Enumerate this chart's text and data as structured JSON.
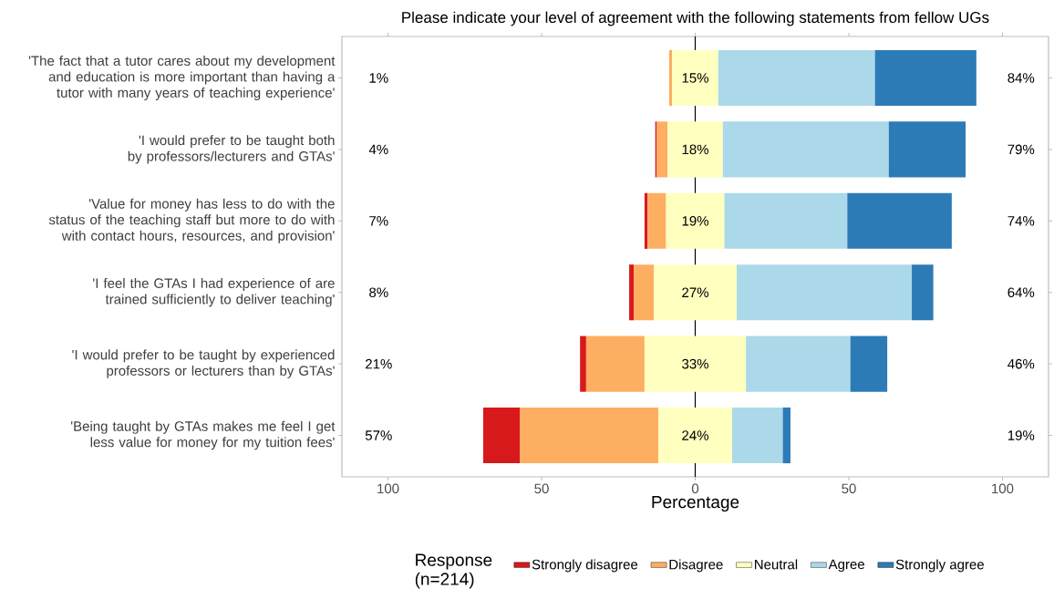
{
  "chart_data": {
    "type": "bar",
    "orientation": "horizontal",
    "title": "Please indicate your level of agreement with the following statements from fellow UGs",
    "xlabel": "Percentage",
    "legend_title": "Response (n=214)",
    "legend": "bottom",
    "categories": [
      "'The fact that a tutor cares about my development and education is more important than having a tutor with many years of teaching experience'",
      "'I would prefer to be taught both by professors/lecturers and GTAs'",
      "'Value for money has less to do with the status of the teaching staff but more to do with with contact hours, resources, and provision'",
      "'I feel the GTAs I had experience of are trained sufficiently to deliver teaching'",
      "'I would prefer to be taught by experienced professors or lecturers than by GTAs'",
      "'Being taught by GTAs makes me feel I get less value for money for my tuition fees'"
    ],
    "series": [
      {
        "name": "Strongly disagree",
        "color": "#d7191c",
        "values": [
          null,
          0.5,
          1,
          1.5,
          2,
          12
        ],
        "base": [
          null,
          -13,
          -16.5,
          -21.5,
          -37.5,
          -69
        ]
      },
      {
        "name": "Disagree",
        "color": "#fdae61",
        "values": [
          1,
          3.5,
          6,
          6.5,
          19,
          45
        ],
        "base": [
          -8.5,
          -12.5,
          -15.5,
          -20,
          -35.5,
          -57
        ]
      },
      {
        "name": "Neutral",
        "color": "#ffffbf",
        "values": [
          15,
          18,
          19,
          27,
          33,
          24
        ],
        "base": [
          -7.5,
          -9,
          -9.5,
          -13.5,
          -16.5,
          -12
        ],
        "value_labels": [
          "15%",
          "18%",
          "19%",
          "27%",
          "33%",
          "24%"
        ]
      },
      {
        "name": "Agree",
        "color": "#abd9e9",
        "values": [
          51,
          54,
          40,
          57,
          34,
          16.5
        ],
        "base": [
          7.5,
          9,
          9.5,
          13.5,
          16.5,
          12
        ]
      },
      {
        "name": "Strongly agree",
        "color": "#2c7bb6",
        "values": [
          33,
          25,
          34,
          7,
          12,
          2.5
        ],
        "base": [
          58.5,
          63,
          49.5,
          70.5,
          50.5,
          28.5
        ]
      }
    ],
    "xlim": [
      -115,
      115
    ],
    "xticks": [
      {
        "value": -100,
        "label": "100"
      },
      {
        "value": -50,
        "label": "50"
      },
      0,
      50,
      100
    ],
    "ref_lines": [
      {
        "axis": "x",
        "value": 0,
        "color": "#000000"
      }
    ],
    "annotations": [
      "1%",
      "4%",
      "7%",
      "8%",
      "21%",
      "57%",
      "84%",
      "79%",
      "74%",
      "64%",
      "46%",
      "19%"
    ]
  }
}
